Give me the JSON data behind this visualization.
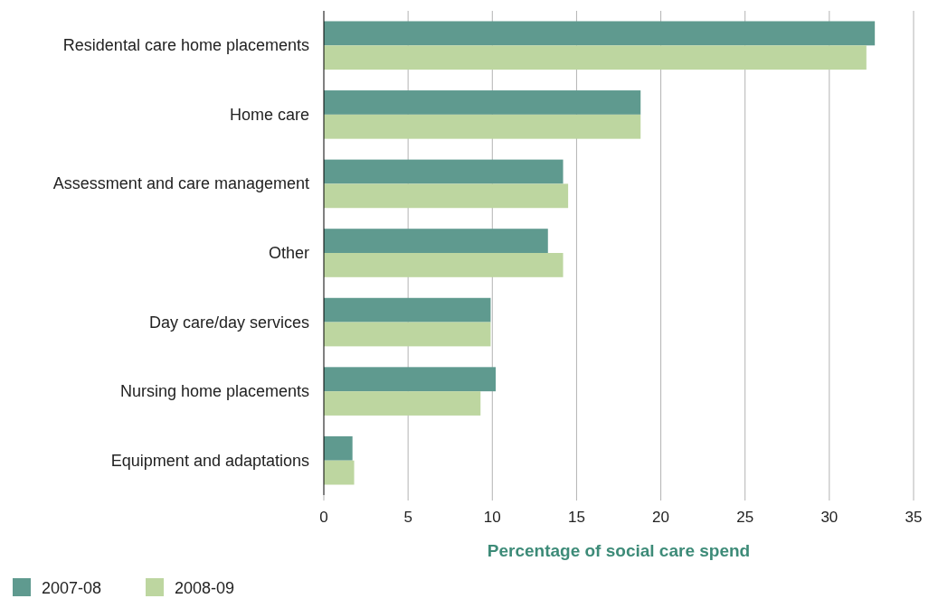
{
  "chart_data": {
    "type": "bar",
    "orientation": "horizontal",
    "xlabel": "Percentage of social care spend",
    "categories": [
      "Residental care home placements",
      "Home care",
      "Assessment and care management",
      "Other",
      "Day care/day services",
      "Nursing home placements",
      "Equipment and adaptations"
    ],
    "series": [
      {
        "name": "2007-08",
        "color": "#5f9a8f",
        "values": [
          32.7,
          18.8,
          14.2,
          13.3,
          9.9,
          10.2,
          1.7
        ]
      },
      {
        "name": "2008-09",
        "color": "#bdd6a0",
        "values": [
          32.2,
          18.8,
          14.5,
          14.2,
          9.9,
          9.3,
          1.8
        ]
      }
    ],
    "xlim": [
      0,
      35
    ],
    "xticks": [
      0,
      5,
      10,
      15,
      20,
      25,
      30,
      35
    ],
    "grid": "x",
    "legend": "bottom left"
  }
}
